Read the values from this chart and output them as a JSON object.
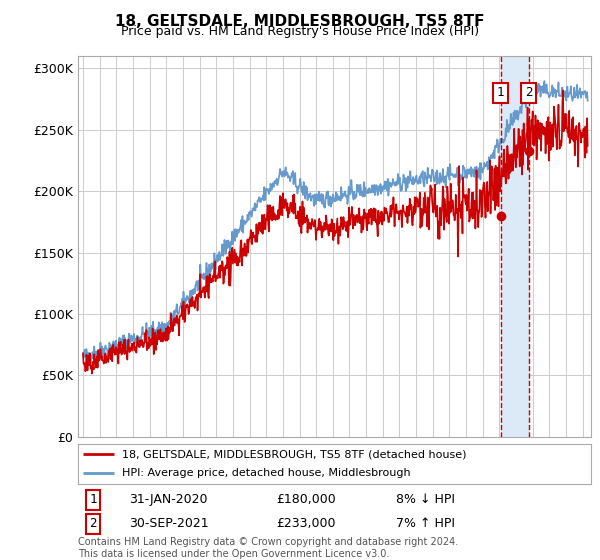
{
  "title": "18, GELTSDALE, MIDDLESBROUGH, TS5 8TF",
  "subtitle": "Price paid vs. HM Land Registry's House Price Index (HPI)",
  "ylabel_ticks": [
    "£0",
    "£50K",
    "£100K",
    "£150K",
    "£200K",
    "£250K",
    "£300K"
  ],
  "ytick_values": [
    0,
    50000,
    100000,
    150000,
    200000,
    250000,
    300000
  ],
  "ylim": [
    0,
    310000
  ],
  "xlim_start": 1994.7,
  "xlim_end": 2025.5,
  "background_color": "#ffffff",
  "grid_color": "#cccccc",
  "hpi_color": "#6699cc",
  "price_color": "#cc0000",
  "sale1_x": 2020.08,
  "sale1_y": 180000,
  "sale2_x": 2021.75,
  "sale2_y": 233000,
  "sale1_label": "31-JAN-2020",
  "sale1_price": "£180,000",
  "sale1_hpi": "8% ↓ HPI",
  "sale2_label": "30-SEP-2021",
  "sale2_price": "£233,000",
  "sale2_hpi": "7% ↑ HPI",
  "legend_line1": "18, GELTSDALE, MIDDLESBROUGH, TS5 8TF (detached house)",
  "legend_line2": "HPI: Average price, detached house, Middlesbrough",
  "footnote": "Contains HM Land Registry data © Crown copyright and database right 2024.\nThis data is licensed under the Open Government Licence v3.0.",
  "shade_color": "#dce9f7"
}
